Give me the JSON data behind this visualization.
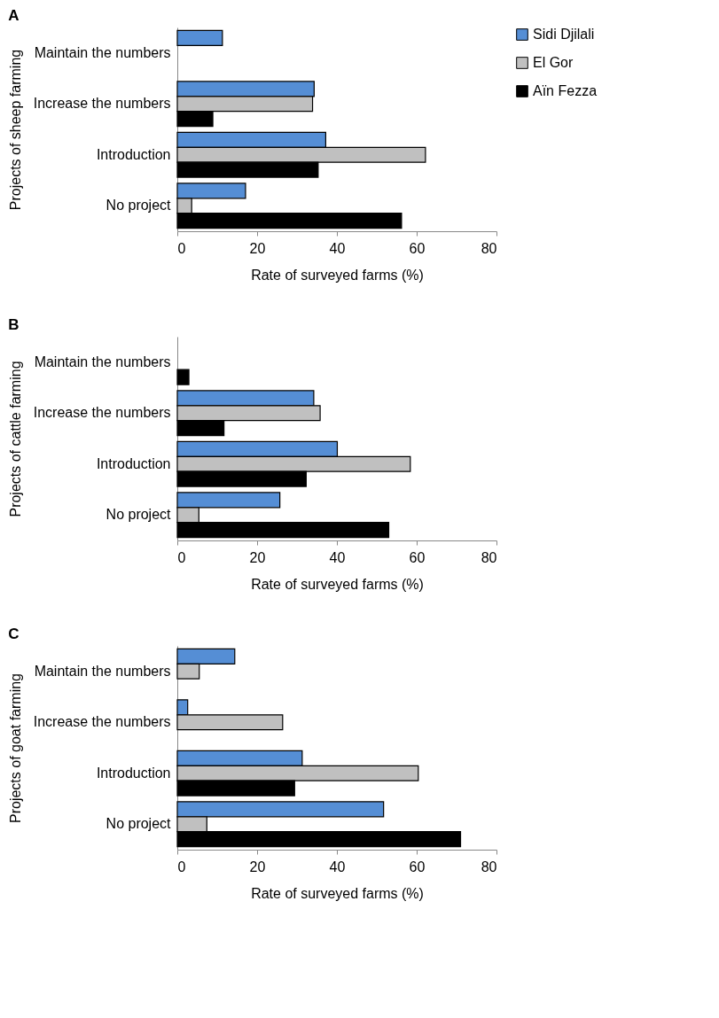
{
  "chart_data": [
    {
      "type": "bar",
      "orientation": "horizontal",
      "title": "A",
      "xlabel": "Rate of surveyed farms (%)",
      "ylabel": "Projects of sheep farming",
      "categories": [
        "Maintain the numbers",
        "Increase the numbers",
        "Introduction",
        "No project"
      ],
      "xlim": [
        0,
        80
      ],
      "xticks": [
        0,
        20,
        40,
        60,
        80
      ],
      "grid": false,
      "legend": "right",
      "series": [
        {
          "name": "Sidi Djilali",
          "color": "#558ed5",
          "values": [
            11.3,
            34.3,
            37.2,
            17.1
          ]
        },
        {
          "name": "El Gor",
          "color": "#c0c0c0",
          "values": [
            null,
            33.9,
            62.2,
            3.6
          ]
        },
        {
          "name": "Aïn Fezza",
          "color": "#000000",
          "values": [
            null,
            8.9,
            35.3,
            56.2
          ]
        }
      ]
    },
    {
      "type": "bar",
      "orientation": "horizontal",
      "title": "B",
      "xlabel": "Rate of surveyed farms (%)",
      "ylabel": "Projects of cattle farming",
      "categories": [
        "Maintain the numbers",
        "Increase the numbers",
        "Introduction",
        "No project"
      ],
      "xlim": [
        0,
        80
      ],
      "xticks": [
        0,
        20,
        40,
        60,
        80
      ],
      "grid": false,
      "legend": "right",
      "series": [
        {
          "name": "Sidi Djilali",
          "color": "#558ed5",
          "values": [
            null,
            34.2,
            40.1,
            25.7
          ]
        },
        {
          "name": "El Gor",
          "color": "#c0c0c0",
          "values": [
            null,
            35.8,
            58.4,
            5.4
          ]
        },
        {
          "name": "Aïn Fezza",
          "color": "#000000",
          "values": [
            2.9,
            11.7,
            32.3,
            53.0
          ]
        }
      ]
    },
    {
      "type": "bar",
      "orientation": "horizontal",
      "title": "C",
      "xlabel": "Rate of surveyed farms (%)",
      "ylabel": "Projects of goat farming",
      "categories": [
        "Maintain the numbers",
        "Increase the numbers",
        "Introduction",
        "No project"
      ],
      "xlim": [
        0,
        80
      ],
      "xticks": [
        0,
        20,
        40,
        60,
        80
      ],
      "grid": false,
      "legend": "right",
      "series": [
        {
          "name": "Sidi Djilali",
          "color": "#558ed5",
          "values": [
            14.4,
            2.6,
            31.3,
            51.7
          ]
        },
        {
          "name": "El Gor",
          "color": "#c0c0c0",
          "values": [
            5.5,
            26.4,
            60.4,
            7.4
          ]
        },
        {
          "name": "Aïn Fezza",
          "color": "#000000",
          "values": [
            null,
            null,
            29.4,
            71.0
          ]
        }
      ]
    }
  ]
}
